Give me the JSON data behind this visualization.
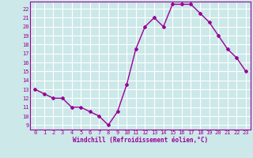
{
  "x": [
    0,
    1,
    2,
    3,
    4,
    5,
    6,
    7,
    8,
    9,
    10,
    11,
    12,
    13,
    14,
    15,
    16,
    17,
    18,
    19,
    20,
    21,
    22,
    23
  ],
  "y": [
    13,
    12.5,
    12,
    12,
    11,
    11,
    10.5,
    10,
    9,
    10.5,
    13.5,
    17.5,
    20,
    21,
    20,
    22.5,
    22.5,
    22.5,
    21.5,
    20.5,
    19,
    17.5,
    16.5,
    15
  ],
  "line_color": "#990099",
  "marker": "D",
  "marker_size": 2,
  "bg_color": "#cce8e8",
  "grid_color": "#ffffff",
  "xlabel": "Windchill (Refroidissement éolien,°C)",
  "xlabel_color": "#990099",
  "ylabel_ticks": [
    9,
    10,
    11,
    12,
    13,
    14,
    15,
    16,
    17,
    18,
    19,
    20,
    21,
    22
  ],
  "ylim": [
    8.5,
    22.8
  ],
  "xlim": [
    -0.5,
    23.5
  ],
  "xtick_labels": [
    "0",
    "1",
    "2",
    "3",
    "4",
    "5",
    "6",
    "7",
    "8",
    "9",
    "10",
    "11",
    "12",
    "13",
    "14",
    "15",
    "16",
    "17",
    "18",
    "19",
    "20",
    "21",
    "22",
    "23"
  ]
}
